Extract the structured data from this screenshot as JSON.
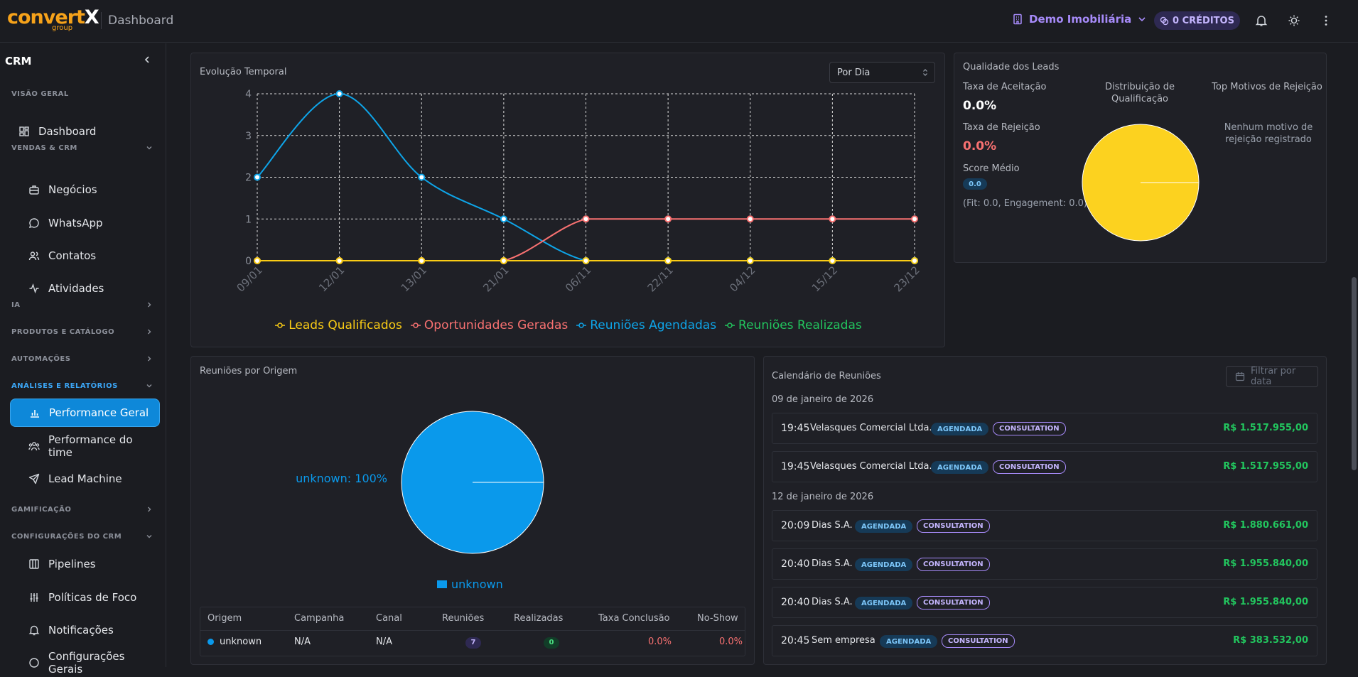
{
  "header": {
    "logo_main": "convertX",
    "logo_sub": "group",
    "title": "Dashboard",
    "tenant": "Demo Imobiliária",
    "credits": "0 CRÉDITOS",
    "icons": [
      "building-icon",
      "chevron-down-icon",
      "credits-icon",
      "bell-icon",
      "sun-icon",
      "more-vertical-icon"
    ]
  },
  "sidebar": {
    "title": "CRM",
    "sections": {
      "overview": "VISÃO GERAL",
      "sales": "VENDAS & CRM",
      "ai": "IA",
      "products": "PRODUTOS E CATÁLOGO",
      "automations": "AUTOMAÇÕES",
      "analytics": "ANÁLISES E RELATÓRIOS",
      "gamification": "GAMIFICAÇÃO",
      "crm_settings": "CONFIGURAÇÕES DO CRM"
    },
    "items": {
      "dashboard": "Dashboard",
      "deals": "Negócios",
      "whatsapp": "WhatsApp",
      "contacts": "Contatos",
      "activities": "Atividades",
      "performance": "Performance Geral",
      "team_performance": "Performance do time",
      "lead_machine": "Lead Machine",
      "pipelines": "Pipelines",
      "focus_policies": "Políticas de Foco",
      "notifications": "Notificações",
      "general_settings": "Configurações Gerais"
    }
  },
  "evolution": {
    "title": "Evolução Temporal",
    "select_value": "Por Dia"
  },
  "chart_data": [
    {
      "type": "line",
      "title": "Evolução Temporal",
      "categories": [
        "09/01",
        "12/01",
        "13/01",
        "21/01",
        "06/11",
        "22/11",
        "04/12",
        "15/12",
        "23/12"
      ],
      "ylim": [
        0,
        4
      ],
      "yticks": [
        "0",
        "1",
        "2",
        "3",
        "4"
      ],
      "grid": true,
      "legend": "bottom",
      "series": [
        {
          "name": "Leads Qualificados",
          "color": "#facc15",
          "values": [
            0,
            0,
            0,
            0,
            0,
            0,
            0,
            0,
            0
          ]
        },
        {
          "name": "Oportunidades Geradas",
          "color": "#f87171",
          "values": [
            0,
            0,
            0,
            0,
            1,
            1,
            1,
            1,
            1
          ]
        },
        {
          "name": "Reuniões Agendadas",
          "color": "#0ea5e9",
          "values": [
            2,
            4,
            2,
            1,
            0,
            0,
            0,
            0,
            0
          ]
        },
        {
          "name": "Reuniões Realizadas",
          "color": "#22c55e",
          "values": [
            0,
            0,
            0,
            0,
            0,
            0,
            0,
            0,
            0
          ]
        }
      ]
    },
    {
      "type": "pie",
      "title": "Distribuição de Qualificação",
      "values": [
        100
      ],
      "colors": [
        "#fcd21f"
      ]
    },
    {
      "type": "pie",
      "title": "Reuniões por Origem",
      "categories": [
        "unknown"
      ],
      "values": [
        100
      ],
      "label": "unknown: 100%",
      "colors": [
        "#0a99eb"
      ],
      "legend": "bottom"
    }
  ],
  "quality": {
    "title": "Qualidade dos Leads",
    "acceptance_label": "Taxa de Aceitação",
    "acceptance_value": "0.0%",
    "rejection_label": "Taxa de Rejeição",
    "rejection_value": "0.0%",
    "score_label": "Score Médio",
    "score_value": "0.0",
    "score_detail": "(Fit: 0.0, Engagement: 0.0)",
    "distribution_title": "Distribuição de Qualificação",
    "top_reasons_title": "Top Motivos de Rejeição",
    "no_reasons": "Nenhum motivo de rejeição registrado"
  },
  "origin": {
    "title": "Reuniões por Origem",
    "pie_label": "unknown: 100%",
    "legend_label": "unknown",
    "table": {
      "headers": [
        "Origem",
        "Campanha",
        "Canal",
        "Reuniões",
        "Realizadas",
        "Taxa Conclusão",
        "No-Show"
      ],
      "rows": [
        {
          "origem": "unknown",
          "campanha": "N/A",
          "canal": "N/A",
          "reunioes": "7",
          "realizadas": "0",
          "taxa": "0.0%",
          "noshow": "0.0%"
        }
      ]
    }
  },
  "calendar": {
    "title": "Calendário de Reuniões",
    "filter_placeholder": "Filtrar por data",
    "days": [
      {
        "date": "09 de janeiro de 2026",
        "meetings": [
          {
            "time": "19:45",
            "company": "Velasques Comercial Ltda.",
            "status": "AGENDADA",
            "type": "CONSULTATION",
            "amount": "R$ 1.517.955,00"
          },
          {
            "time": "19:45",
            "company": "Velasques Comercial Ltda.",
            "status": "AGENDADA",
            "type": "CONSULTATION",
            "amount": "R$ 1.517.955,00"
          }
        ]
      },
      {
        "date": "12 de janeiro de 2026",
        "meetings": [
          {
            "time": "20:09",
            "company": "Dias S.A.",
            "status": "AGENDADA",
            "type": "CONSULTATION",
            "amount": "R$ 1.880.661,00"
          },
          {
            "time": "20:40",
            "company": "Dias S.A.",
            "status": "AGENDADA",
            "type": "CONSULTATION",
            "amount": "R$ 1.955.840,00"
          },
          {
            "time": "20:40",
            "company": "Dias S.A.",
            "status": "AGENDADA",
            "type": "CONSULTATION",
            "amount": "R$ 1.955.840,00"
          },
          {
            "time": "20:45",
            "company": "Sem empresa",
            "status": "AGENDADA",
            "type": "CONSULTATION",
            "amount": "R$ 383.532,00"
          }
        ]
      }
    ]
  },
  "colors": {
    "accent": "#0e88d9",
    "credits": "#a78bfa",
    "positive": "#22c55e",
    "negative": "#f87171"
  }
}
